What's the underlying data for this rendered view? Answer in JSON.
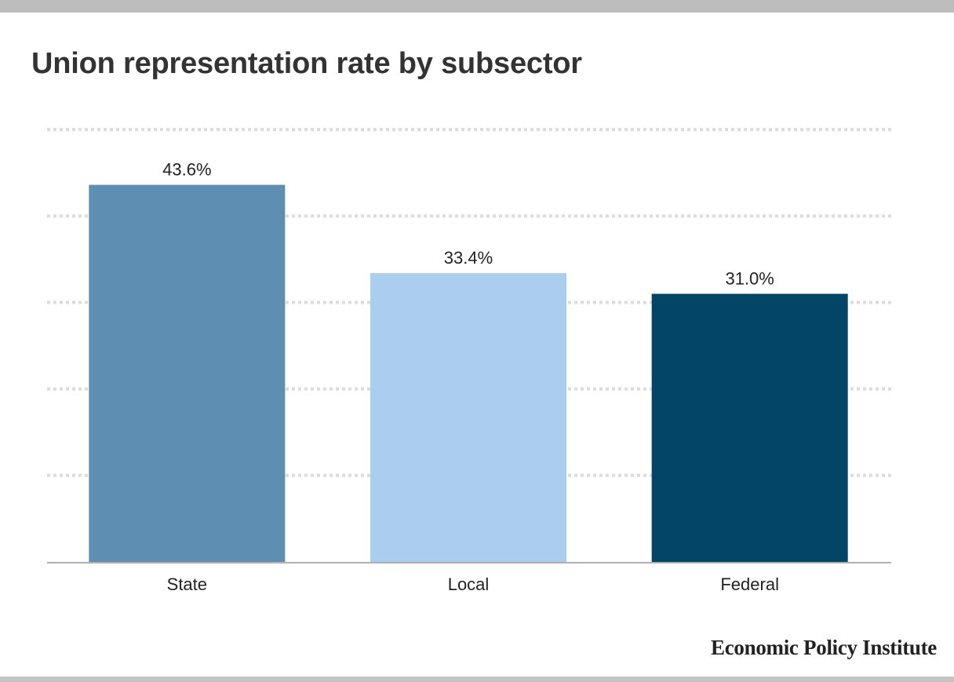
{
  "title": "Union representation rate by subsector",
  "source": "Economic Policy Institute",
  "colors": {
    "state": "#5e8fb3",
    "local": "#abcdee",
    "federal": "#024567",
    "grid": "#dcdcdc",
    "axis": "#b0b0b0",
    "text": "#222222"
  },
  "chart_data": {
    "type": "bar",
    "title": "Union representation rate by subsector",
    "xlabel": "",
    "ylabel": "",
    "categories": [
      "State",
      "Local",
      "Federal"
    ],
    "values": [
      43.6,
      33.4,
      31.0
    ],
    "value_labels": [
      "43.6%",
      "33.4%",
      "31.0%"
    ],
    "bar_colors": [
      "#5e8fb3",
      "#abcdee",
      "#024567"
    ],
    "ylim": [
      0,
      50
    ],
    "gridlines": [
      0,
      10,
      20,
      30,
      40,
      50
    ],
    "grid": true,
    "legend": "none"
  }
}
